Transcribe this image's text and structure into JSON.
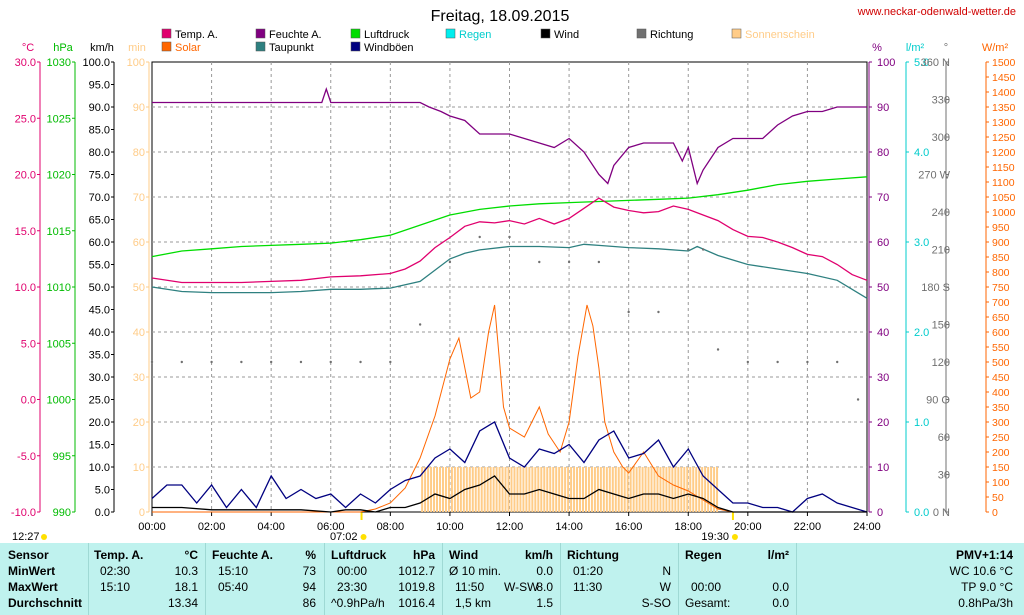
{
  "title": "Freitag, 18.09.2015",
  "site": "www.neckar-odenwald-wetter.de",
  "legend": [
    {
      "label": "Temp. A.",
      "color": "#e0006e"
    },
    {
      "label": "Feuchte A.",
      "color": "#800080"
    },
    {
      "label": "Luftdruck",
      "color": "#00dd00"
    },
    {
      "label": "Regen",
      "color": "#00eeee"
    },
    {
      "label": "Wind",
      "color": "#000000"
    },
    {
      "label": "Richtung",
      "color": "#707070"
    },
    {
      "label": "Sonnenschein",
      "color": "#ffcc88"
    },
    {
      "label": "Solar",
      "color": "#ff6600"
    },
    {
      "label": "Taupunkt",
      "color": "#2e8080"
    },
    {
      "label": "Windböen",
      "color": "#000080"
    }
  ],
  "axes": {
    "temp": {
      "unit": "°C",
      "color": "#e0006e",
      "ticks": [
        "30.0",
        "25.0",
        "20.0",
        "15.0",
        "10.0",
        "5.0",
        "0.0",
        "-5.0",
        "-10.0"
      ]
    },
    "press": {
      "unit": "hPa",
      "color": "#00bb00",
      "ticks": [
        "1030",
        "1025",
        "1020",
        "1015",
        "1010",
        "1005",
        "1000",
        "995",
        "990"
      ]
    },
    "wind": {
      "unit": "km/h",
      "color": "#000000",
      "ticks": [
        "100.0",
        "95.0",
        "90.0",
        "85.0",
        "80.0",
        "75.0",
        "70.0",
        "65.0",
        "60.0",
        "55.0",
        "50.0",
        "45.0",
        "40.0",
        "35.0",
        "30.0",
        "25.0",
        "20.0",
        "15.0",
        "10.0",
        "5.0",
        "0.0"
      ]
    },
    "sun": {
      "unit": "min",
      "color": "#ffcc88",
      "ticks": [
        "100",
        "90",
        "80",
        "70",
        "60",
        "50",
        "40",
        "30",
        "20",
        "10",
        "0"
      ]
    },
    "hum": {
      "unit": "%",
      "color": "#800080",
      "ticks": [
        "100",
        "90",
        "80",
        "70",
        "60",
        "50",
        "40",
        "30",
        "20",
        "10",
        "0"
      ]
    },
    "rain": {
      "unit": "l/m²",
      "color": "#00cccc",
      "ticks": [
        "5.0",
        "4.0",
        "3.0",
        "2.0",
        "1.0",
        "0.0"
      ]
    },
    "dir": {
      "unit": "°",
      "color": "#707070",
      "ticks": [
        "360 N",
        "330",
        "300",
        "270 W",
        "240",
        "210",
        "180 S",
        "150",
        "120",
        "90 O",
        "60",
        "30",
        "0 N"
      ]
    },
    "solar": {
      "unit": "W/m²",
      "color": "#ff6600",
      "ticks": [
        "1500",
        "1450",
        "1400",
        "1350",
        "1300",
        "1250",
        "1200",
        "1150",
        "1100",
        "1050",
        "1000",
        "950",
        "900",
        "850",
        "800",
        "750",
        "700",
        "650",
        "600",
        "550",
        "500",
        "450",
        "400",
        "350",
        "300",
        "250",
        "200",
        "150",
        "100",
        "50",
        "0"
      ]
    },
    "x": [
      "00:00",
      "02:00",
      "04:00",
      "06:00",
      "08:00",
      "10:00",
      "12:00",
      "14:00",
      "16:00",
      "18:00",
      "20:00",
      "22:00",
      "24:00"
    ]
  },
  "sun_times": {
    "noon": "12:27",
    "rise": "07:02",
    "set": "19:30"
  },
  "chart_data": {
    "type": "line",
    "title": "Freitag, 18.09.2015",
    "x_unit": "hours",
    "series": [
      {
        "name": "Temp. A.",
        "unit": "°C",
        "color": "#e0006e",
        "x": [
          0,
          1,
          2,
          3,
          4,
          5,
          6,
          7,
          8,
          8.5,
          9,
          9.5,
          10,
          10.5,
          11,
          11.5,
          12,
          12.5,
          13,
          13.5,
          14,
          14.5,
          15,
          15.5,
          16,
          16.5,
          17,
          17.5,
          18,
          18.5,
          19,
          19.5,
          20,
          20.5,
          21,
          21.5,
          22,
          22.5,
          23,
          23.5,
          24
        ],
        "y": [
          10.8,
          10.4,
          10.4,
          10.4,
          10.5,
          10.6,
          10.9,
          11.0,
          11.2,
          11.6,
          12.3,
          13.5,
          14.4,
          15.4,
          15.8,
          15.7,
          15.9,
          15.6,
          16.1,
          15.6,
          16.1,
          17.0,
          17.9,
          17.1,
          16.8,
          16.6,
          16.7,
          17.2,
          16.9,
          16.4,
          15.9,
          15.1,
          14.5,
          14.4,
          14.0,
          13.5,
          12.9,
          12.7,
          12.0,
          11.1,
          10.6
        ]
      },
      {
        "name": "Feuchte A.",
        "unit": "%",
        "color": "#800080",
        "x": [
          0,
          1,
          2,
          3,
          4,
          5,
          5.7,
          5.85,
          6,
          7,
          8,
          9,
          9.3,
          9.7,
          10,
          10.5,
          11,
          11.5,
          12,
          12.5,
          13,
          13.5,
          14,
          14.5,
          15,
          15.3,
          15.5,
          16,
          16.5,
          17,
          17.5,
          17.8,
          18,
          18.3,
          18.5,
          19,
          19.5,
          20,
          20.5,
          21,
          21.5,
          22,
          22.5,
          23,
          23.5,
          24
        ],
        "y": [
          91,
          91,
          91,
          91,
          91,
          91,
          91,
          94,
          91,
          91,
          91,
          91,
          90,
          89,
          88,
          87,
          84,
          84,
          84,
          83,
          82,
          81,
          83,
          80,
          75,
          73,
          77,
          81,
          82,
          82,
          82,
          78,
          81,
          73,
          76,
          81,
          83,
          83,
          83,
          86,
          88,
          89,
          89,
          90,
          90,
          90
        ]
      },
      {
        "name": "Luftdruck",
        "unit": "hPa",
        "color": "#00dd00",
        "x": [
          0,
          1,
          2,
          3,
          4,
          5,
          6,
          7,
          8,
          9,
          10,
          11,
          12,
          13,
          14,
          15,
          16,
          17,
          18,
          19,
          20,
          21,
          22,
          23,
          24
        ],
        "y": [
          1012.7,
          1013.2,
          1013.4,
          1013.6,
          1013.7,
          1013.8,
          1013.9,
          1014.2,
          1014.6,
          1015.5,
          1016.4,
          1016.9,
          1017.2,
          1017.4,
          1017.5,
          1017.6,
          1017.7,
          1017.8,
          1017.9,
          1018.2,
          1018.6,
          1019.1,
          1019.4,
          1019.6,
          1019.8
        ]
      },
      {
        "name": "Taupunkt",
        "unit": "°C",
        "color": "#2e8080",
        "x": [
          0,
          1,
          2,
          3,
          4,
          5,
          6,
          7,
          8,
          9,
          10,
          10.5,
          11,
          12,
          13,
          14,
          14.5,
          15,
          16,
          17,
          18,
          18.3,
          19,
          20,
          21,
          22,
          23,
          24
        ],
        "y": [
          10.0,
          9.6,
          9.5,
          9.5,
          9.5,
          9.6,
          9.8,
          9.8,
          9.9,
          10.5,
          12.5,
          13.0,
          13.3,
          13.6,
          13.6,
          13.5,
          13.8,
          13.7,
          13.5,
          13.4,
          13.2,
          13.6,
          12.8,
          12.0,
          11.6,
          11.2,
          10.6,
          9.0
        ]
      },
      {
        "name": "Wind",
        "unit": "km/h",
        "color": "#000000",
        "x": [
          0,
          1,
          2,
          3,
          4,
          5,
          6,
          6.5,
          7,
          7.5,
          8,
          8.5,
          9,
          9.5,
          10,
          10.5,
          11,
          11.5,
          12,
          12.5,
          13,
          13.5,
          14,
          14.5,
          15,
          15.5,
          16,
          16.5,
          17,
          17.5,
          18,
          18.5,
          19,
          19.5,
          20,
          20.5,
          21,
          21.5,
          22,
          22.5,
          23,
          23.5,
          24
        ],
        "y": [
          1,
          1,
          0.5,
          0.5,
          0.5,
          0.5,
          0,
          0.5,
          0.5,
          0,
          1,
          1,
          2,
          4,
          3,
          5,
          6,
          8,
          4,
          4,
          5,
          4,
          3,
          3,
          5,
          4,
          3,
          4,
          4,
          3,
          4,
          3,
          1,
          0,
          0,
          0,
          0,
          0,
          0,
          0,
          0,
          0,
          0
        ]
      },
      {
        "name": "Windböen",
        "unit": "km/h",
        "color": "#000080",
        "x": [
          0,
          0.5,
          1,
          1.5,
          2,
          2.5,
          3,
          3.5,
          4,
          4.5,
          5,
          5.5,
          6,
          6.5,
          7,
          7.5,
          8,
          8.5,
          9,
          9.5,
          10,
          10.5,
          11,
          11.5,
          12,
          12.5,
          13,
          13.5,
          14,
          14.5,
          15,
          15.5,
          16,
          16.5,
          17,
          17.5,
          18,
          18.5,
          19,
          19.5,
          20,
          20.5,
          21,
          21.5,
          22,
          22.5,
          23,
          23.5,
          24
        ],
        "y": [
          3,
          6,
          6,
          2,
          6,
          1,
          5,
          1,
          8,
          3,
          5,
          3,
          4,
          1,
          4,
          2,
          5,
          7,
          8,
          12,
          14,
          11,
          18,
          20,
          12,
          10,
          14,
          13,
          15,
          11,
          16,
          18,
          12,
          13,
          16,
          10,
          14,
          8,
          5,
          2,
          2,
          1,
          1,
          0,
          3,
          4,
          2,
          1,
          0
        ]
      },
      {
        "name": "Solar",
        "unit": "W/m²",
        "color": "#ff6600",
        "x": [
          0,
          7,
          7.5,
          8,
          8.5,
          9,
          9.5,
          10,
          10.3,
          10.7,
          11,
          11.3,
          11.5,
          11.8,
          12,
          12.5,
          13,
          13.3,
          13.7,
          14,
          14.3,
          14.6,
          14.8,
          15,
          15.2,
          15.5,
          15.8,
          16,
          16.5,
          17,
          17.5,
          18,
          18.5,
          19,
          19.5,
          20,
          24
        ],
        "y": [
          0,
          0,
          10,
          30,
          80,
          180,
          320,
          510,
          580,
          380,
          400,
          600,
          690,
          350,
          280,
          250,
          350,
          260,
          200,
          300,
          520,
          690,
          620,
          480,
          300,
          200,
          150,
          130,
          200,
          120,
          90,
          70,
          40,
          10,
          0,
          0,
          0
        ]
      },
      {
        "name": "Sonnenschein",
        "unit": "min",
        "color": "#ffcc88",
        "x": [
          9,
          10,
          11,
          12,
          13,
          14,
          15,
          16,
          17,
          18
        ],
        "y": [
          10,
          10,
          10,
          10,
          10,
          10,
          10,
          10,
          10,
          10
        ]
      },
      {
        "name": "Richtung",
        "unit": "°",
        "color": "#707070",
        "x": [
          0,
          1,
          2,
          3,
          4,
          5,
          6,
          7,
          8,
          9,
          10,
          11,
          12,
          13,
          14,
          15,
          16,
          17,
          18,
          18.5,
          19,
          20,
          21,
          22,
          23,
          23.7
        ],
        "y": [
          120,
          120,
          120,
          120,
          120,
          120,
          120,
          120,
          120,
          150,
          200,
          220,
          220,
          200,
          200,
          200,
          160,
          160,
          210,
          210,
          130,
          120,
          120,
          120,
          120,
          90
        ]
      }
    ]
  },
  "stats": {
    "headers": {
      "sensor": "Sensor",
      "temp": "Temp. A.",
      "temp_u": "°C",
      "hum": "Feuchte A.",
      "hum_u": "%",
      "press": "Luftdruck",
      "press_u": "hPa",
      "wind": "Wind",
      "wind_u": "km/h",
      "dir": "Richtung",
      "rain": "Regen",
      "rain_u": "l/m²",
      "pmv": "PMV+1:14"
    },
    "rows": [
      {
        "label": "MinWert",
        "temp_t": "02:30",
        "temp_v": "10.3",
        "hum_t": "15:10",
        "hum_v": "73",
        "press_t": "00:00",
        "press_v": "1012.7",
        "wind_t": "Ø 10 min.",
        "wind_d": "",
        "wind_v": "0.0",
        "dir_t": "01:20",
        "dir_v": "N",
        "rain_t": "",
        "rain_v": "",
        "pmv": "WC 10.6 °C"
      },
      {
        "label": "MaxWert",
        "temp_t": "15:10",
        "temp_v": "18.1",
        "hum_t": "05:40",
        "hum_v": "94",
        "press_t": "23:30",
        "press_v": "1019.8",
        "wind_t": "11:50",
        "wind_d": "W-SW",
        "wind_v": "8.0",
        "dir_t": "11:30",
        "dir_v": "W",
        "rain_t": "00:00",
        "rain_v": "0.0",
        "pmv": "TP 9.0 °C"
      },
      {
        "label": "Durchschnitt",
        "temp_t": "",
        "temp_v": "13.34",
        "hum_t": "",
        "hum_v": "86",
        "press_t": "^0.9hPa/h",
        "press_v": "1016.4",
        "wind_t": "1,5 km",
        "wind_d": "",
        "wind_v": "1.5",
        "dir_t": "",
        "dir_v": "S-SO",
        "rain_t": "Gesamt:",
        "rain_v": "0.0",
        "pmv": "0.8hPa/3h"
      }
    ]
  }
}
